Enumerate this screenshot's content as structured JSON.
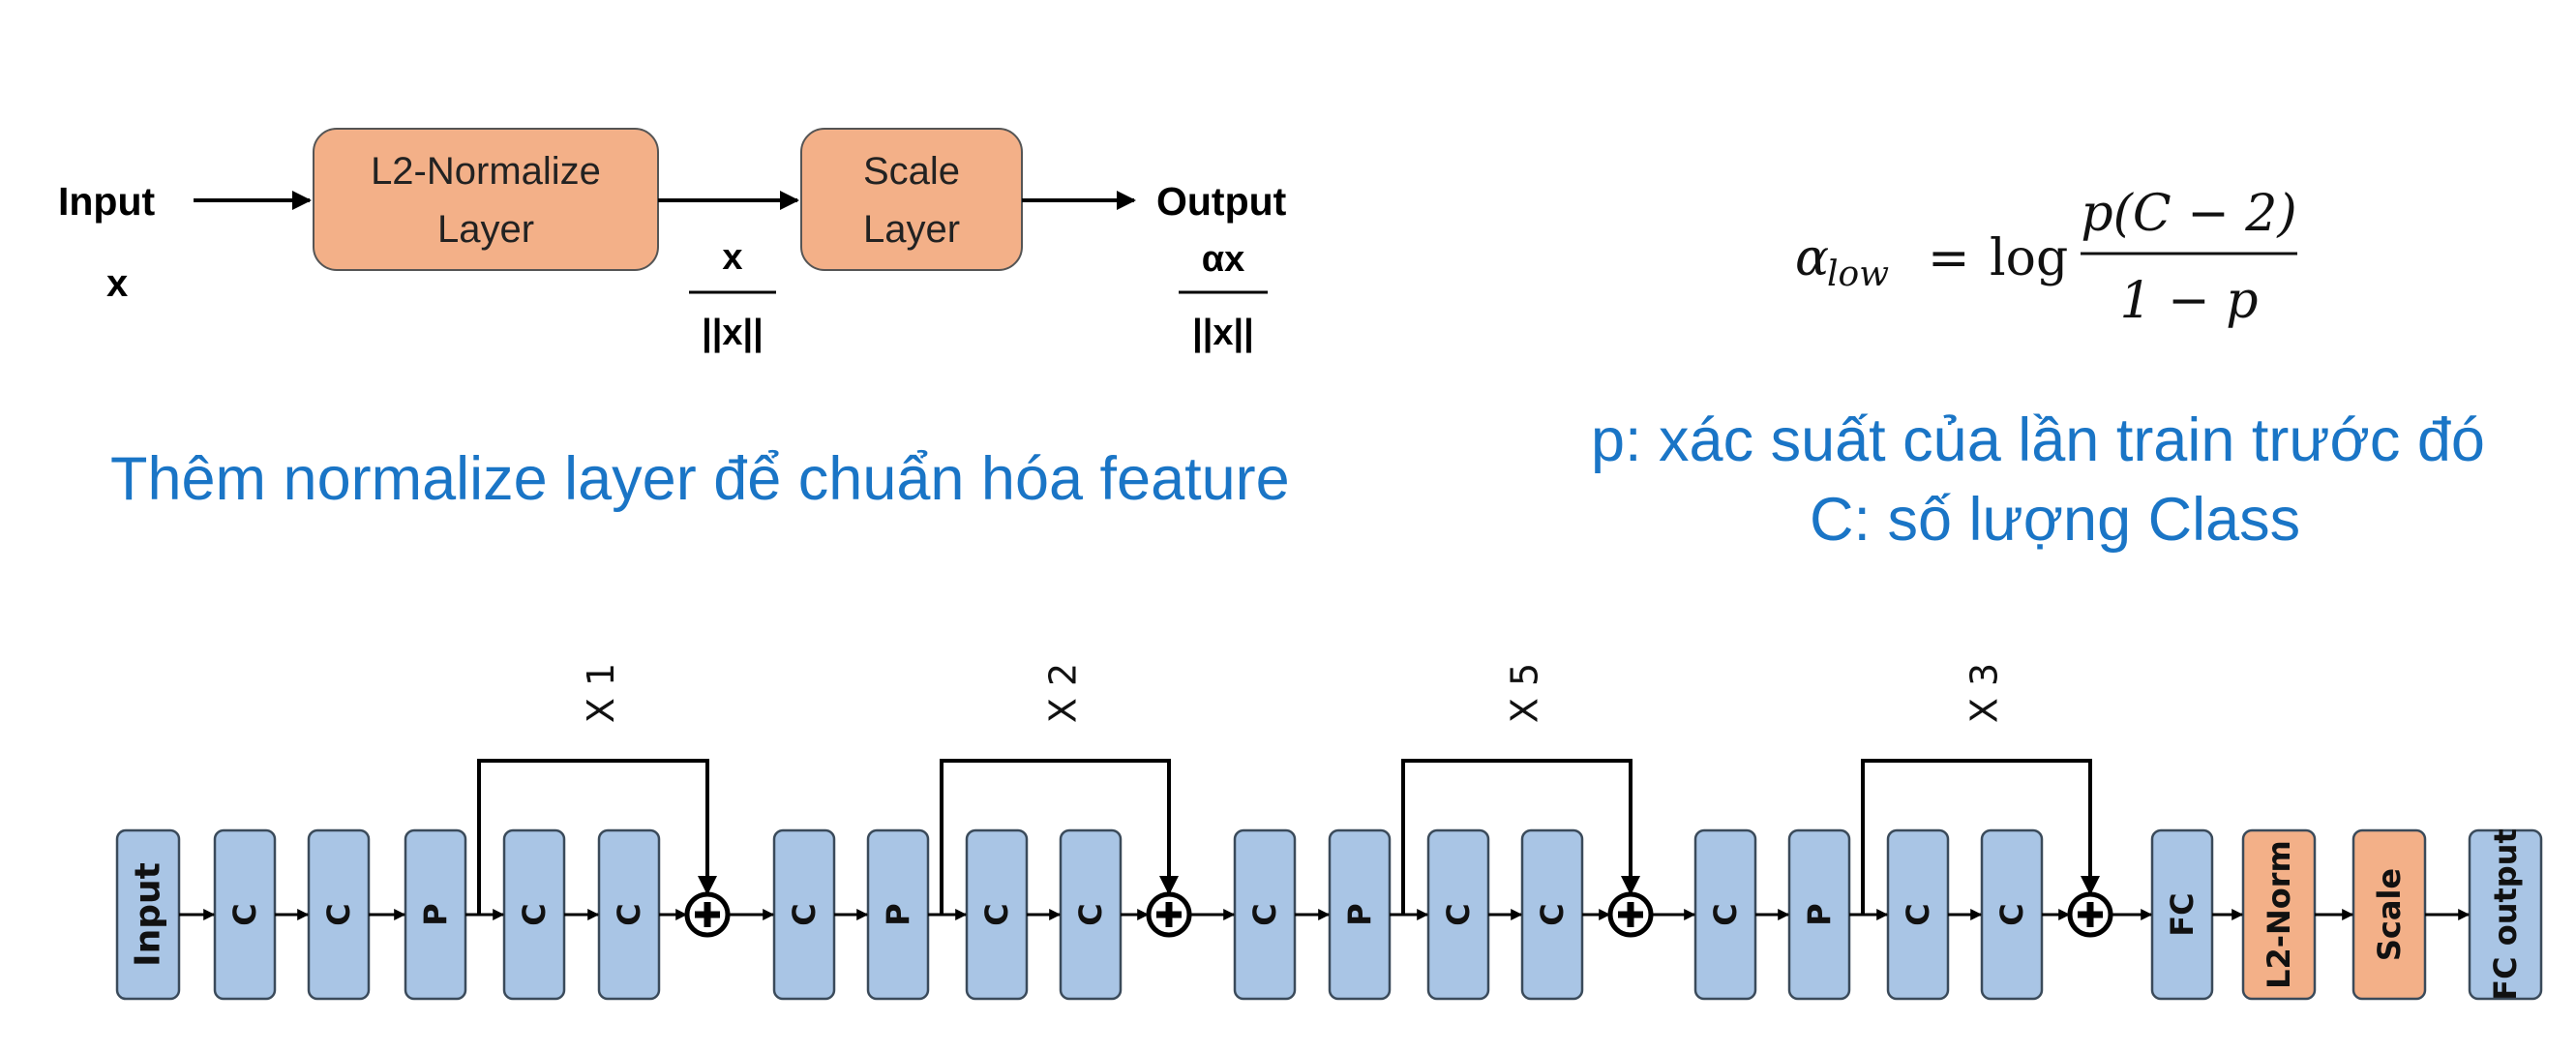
{
  "top_diagram": {
    "input_label": "Input",
    "input_var": "x",
    "box1": [
      "L2-Normalize",
      "Layer"
    ],
    "box2": [
      "Scale",
      "Layer"
    ],
    "mid_num": "x",
    "mid_den": "||x||",
    "output_label": "Output",
    "out_num": "αx",
    "out_den": "||x||"
  },
  "formula": {
    "lhs": "α",
    "lhs_sub": "low",
    "equals": "=",
    "log": "log",
    "numerator": "p(C − 2)",
    "denominator": "1 − p"
  },
  "captions": {
    "left": "Thêm normalize layer để chuẩn hóa feature",
    "right_line1": "p: xác suất của lần train trước đó",
    "right_line2": "C: số lượng Class"
  },
  "network": {
    "input": "Input",
    "c": "C",
    "p": "P",
    "plus": "+",
    "stage_repeats": [
      "X 1",
      "X 2",
      "X 5",
      "X 3"
    ],
    "fc": "FC",
    "l2norm": "L2-Norm",
    "scale": "Scale",
    "fc_output": "FC output"
  },
  "colors": {
    "orange_box": "#f3b088",
    "blue_box": "#a9c5e5",
    "caption_blue": "#1a75c6"
  }
}
